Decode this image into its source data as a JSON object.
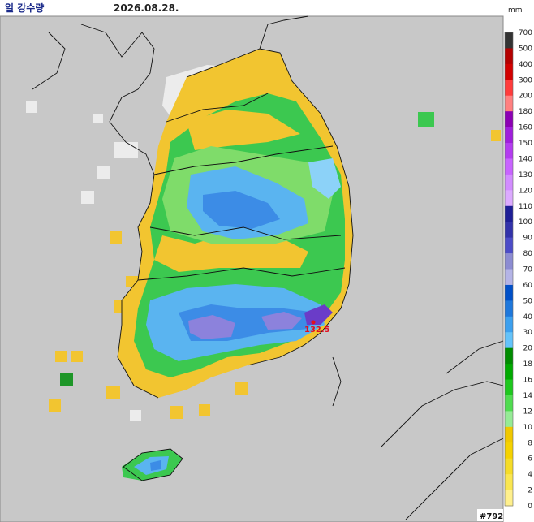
{
  "header": {
    "title": "일 강수량",
    "date": "2026.08.28.",
    "unit": "mm"
  },
  "legend": {
    "ticks": [
      700,
      500,
      400,
      300,
      200,
      180,
      160,
      150,
      140,
      130,
      120,
      110,
      100,
      90,
      80,
      70,
      60,
      50,
      40,
      30,
      20,
      18,
      16,
      14,
      12,
      10,
      8,
      6,
      4,
      2,
      0
    ]
  },
  "map": {
    "max_label": "132.5"
  },
  "footer": {
    "id": "#792"
  }
}
